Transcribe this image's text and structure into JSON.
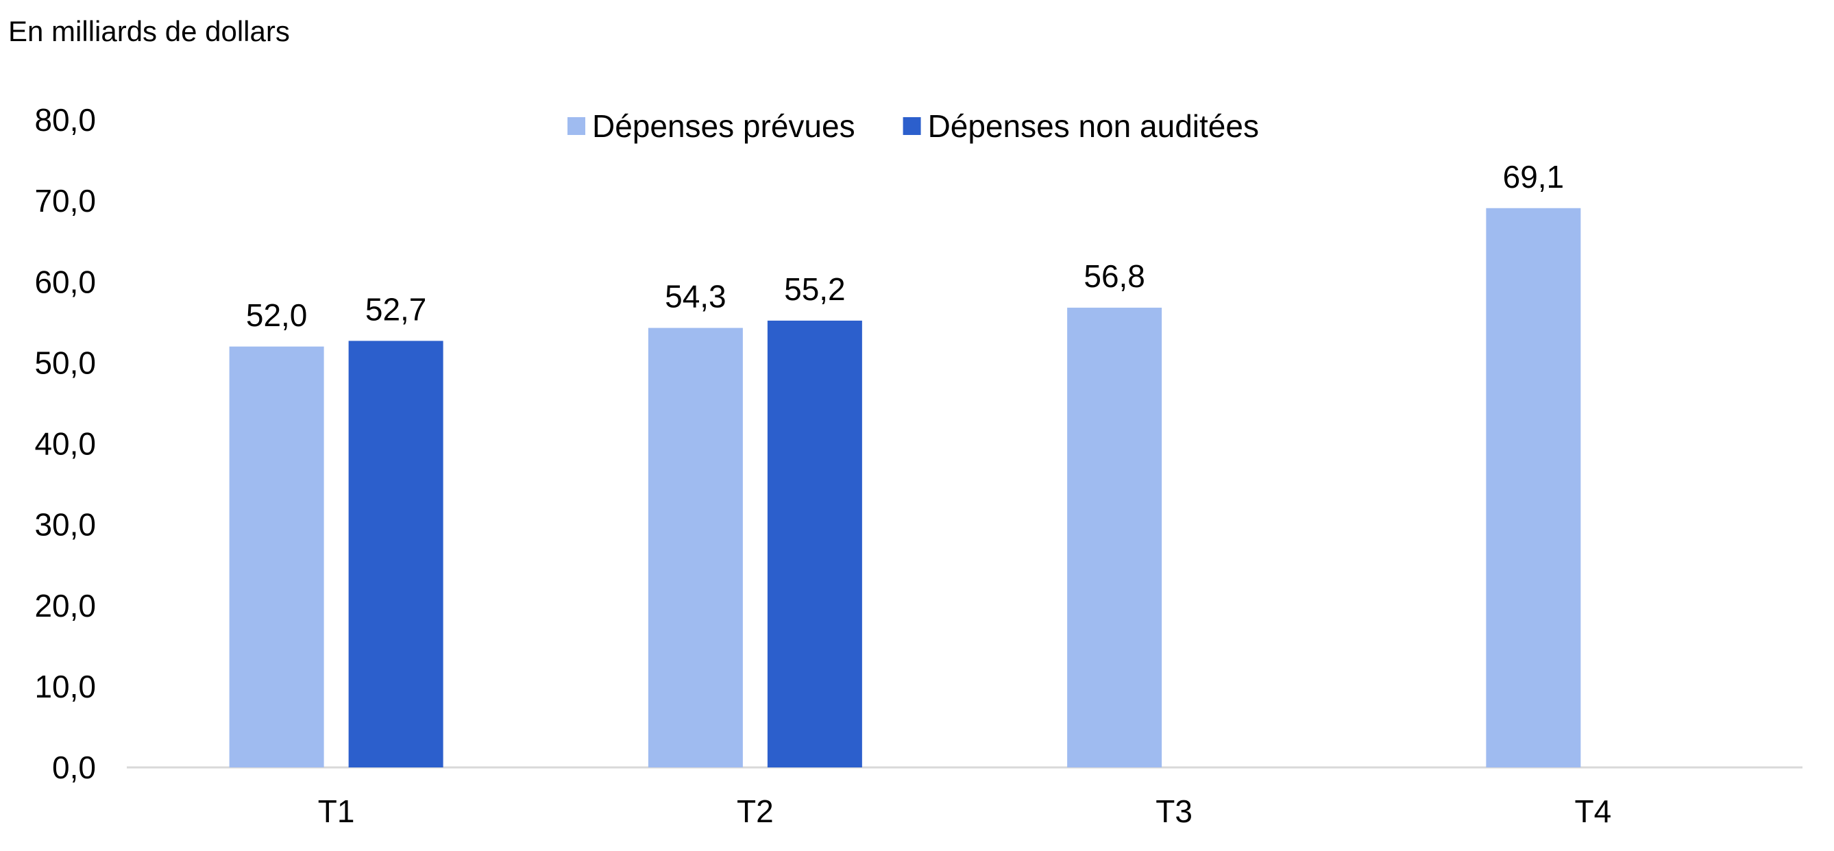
{
  "chart_data": {
    "type": "bar",
    "unit_label": "En milliards de dollars",
    "categories": [
      "T1",
      "T2",
      "T3",
      "T4"
    ],
    "series": [
      {
        "name": "Dépenses prévues",
        "color": "#9FBBF0",
        "values": [
          52.0,
          54.3,
          56.8,
          69.1
        ],
        "labels": [
          "52,0",
          "54,3",
          "56,8",
          "69,1"
        ]
      },
      {
        "name": "Dépenses non auditées",
        "color": "#2C5FCC",
        "values": [
          52.7,
          55.2,
          null,
          null
        ],
        "labels": [
          "52,7",
          "55,2",
          "",
          ""
        ]
      }
    ],
    "ylim": [
      0,
      80
    ],
    "yticks": [
      "0,0",
      "10,0",
      "20,0",
      "30,0",
      "40,0",
      "50,0",
      "60,0",
      "70,0",
      "80,0"
    ],
    "ytick_values": [
      0,
      10,
      20,
      30,
      40,
      50,
      60,
      70,
      80
    ],
    "legend_position": "top-center",
    "grid": false,
    "axis_color": "#D9D9D9"
  }
}
